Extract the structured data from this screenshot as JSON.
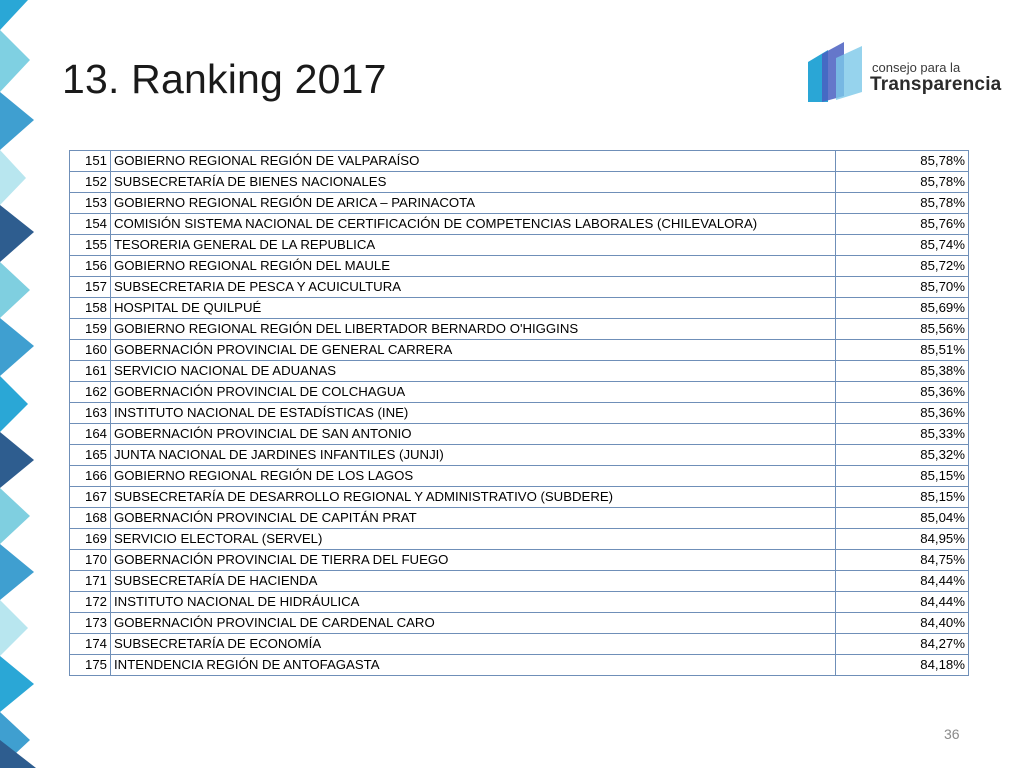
{
  "slide": {
    "title": "13. Ranking 2017",
    "page_number": "36"
  },
  "logo": {
    "line1": "consejo para la",
    "line2": "Transparencia",
    "colors": [
      "#4a5fc1",
      "#2aa6d6",
      "#7cc8e8"
    ]
  },
  "colors": {
    "table_border": "#6f8fb8",
    "deco_blue": "#3f9fd0",
    "deco_teal": "#7fcfe0",
    "deco_navy": "#2e5d8f"
  },
  "ranking": [
    {
      "rank": "151",
      "name": "GOBIERNO REGIONAL REGIÓN DE VALPARAÍSO",
      "score": "85,78%"
    },
    {
      "rank": "152",
      "name": "SUBSECRETARÍA DE BIENES NACIONALES",
      "score": "85,78%"
    },
    {
      "rank": "153",
      "name": "GOBIERNO REGIONAL REGIÓN DE ARICA – PARINACOTA",
      "score": "85,78%"
    },
    {
      "rank": "154",
      "name": "COMISIÓN SISTEMA NACIONAL DE CERTIFICACIÓN DE COMPETENCIAS LABORALES (CHILEVALORA)",
      "score": "85,76%"
    },
    {
      "rank": "155",
      "name": "TESORERIA GENERAL DE LA REPUBLICA",
      "score": "85,74%"
    },
    {
      "rank": "156",
      "name": "GOBIERNO REGIONAL REGIÓN DEL MAULE",
      "score": "85,72%"
    },
    {
      "rank": "157",
      "name": "SUBSECRETARIA DE PESCA Y ACUICULTURA",
      "score": "85,70%"
    },
    {
      "rank": "158",
      "name": "HOSPITAL DE QUILPUÉ",
      "score": "85,69%"
    },
    {
      "rank": "159",
      "name": "GOBIERNO REGIONAL REGIÓN DEL LIBERTADOR BERNARDO O'HIGGINS",
      "score": "85,56%"
    },
    {
      "rank": "160",
      "name": "GOBERNACIÓN PROVINCIAL DE GENERAL CARRERA",
      "score": "85,51%"
    },
    {
      "rank": "161",
      "name": "SERVICIO NACIONAL DE ADUANAS",
      "score": "85,38%"
    },
    {
      "rank": "162",
      "name": "GOBERNACIÓN PROVINCIAL DE COLCHAGUA",
      "score": "85,36%"
    },
    {
      "rank": "163",
      "name": "INSTITUTO NACIONAL DE ESTADÍSTICAS (INE)",
      "score": "85,36%"
    },
    {
      "rank": "164",
      "name": "GOBERNACIÓN PROVINCIAL DE SAN ANTONIO",
      "score": "85,33%"
    },
    {
      "rank": "165",
      "name": "JUNTA NACIONAL DE JARDINES INFANTILES (JUNJI)",
      "score": "85,32%"
    },
    {
      "rank": "166",
      "name": "GOBIERNO REGIONAL REGIÓN DE LOS LAGOS",
      "score": "85,15%"
    },
    {
      "rank": "167",
      "name": "SUBSECRETARÍA DE DESARROLLO REGIONAL Y ADMINISTRATIVO (SUBDERE)",
      "score": "85,15%"
    },
    {
      "rank": "168",
      "name": "GOBERNACIÓN PROVINCIAL DE CAPITÁN PRAT",
      "score": "85,04%"
    },
    {
      "rank": "169",
      "name": "SERVICIO ELECTORAL (SERVEL)",
      "score": "84,95%"
    },
    {
      "rank": "170",
      "name": "GOBERNACIÓN PROVINCIAL DE TIERRA DEL FUEGO",
      "score": "84,75%"
    },
    {
      "rank": "171",
      "name": "SUBSECRETARÍA DE HACIENDA",
      "score": "84,44%"
    },
    {
      "rank": "172",
      "name": "INSTITUTO NACIONAL DE HIDRÁULICA",
      "score": "84,44%"
    },
    {
      "rank": "173",
      "name": "GOBERNACIÓN PROVINCIAL DE CARDENAL CARO",
      "score": "84,40%"
    },
    {
      "rank": "174",
      "name": "SUBSECRETARÍA DE ECONOMÍA",
      "score": "84,27%"
    },
    {
      "rank": "175",
      "name": "INTENDENCIA REGIÓN DE ANTOFAGASTA",
      "score": "84,18%"
    }
  ]
}
